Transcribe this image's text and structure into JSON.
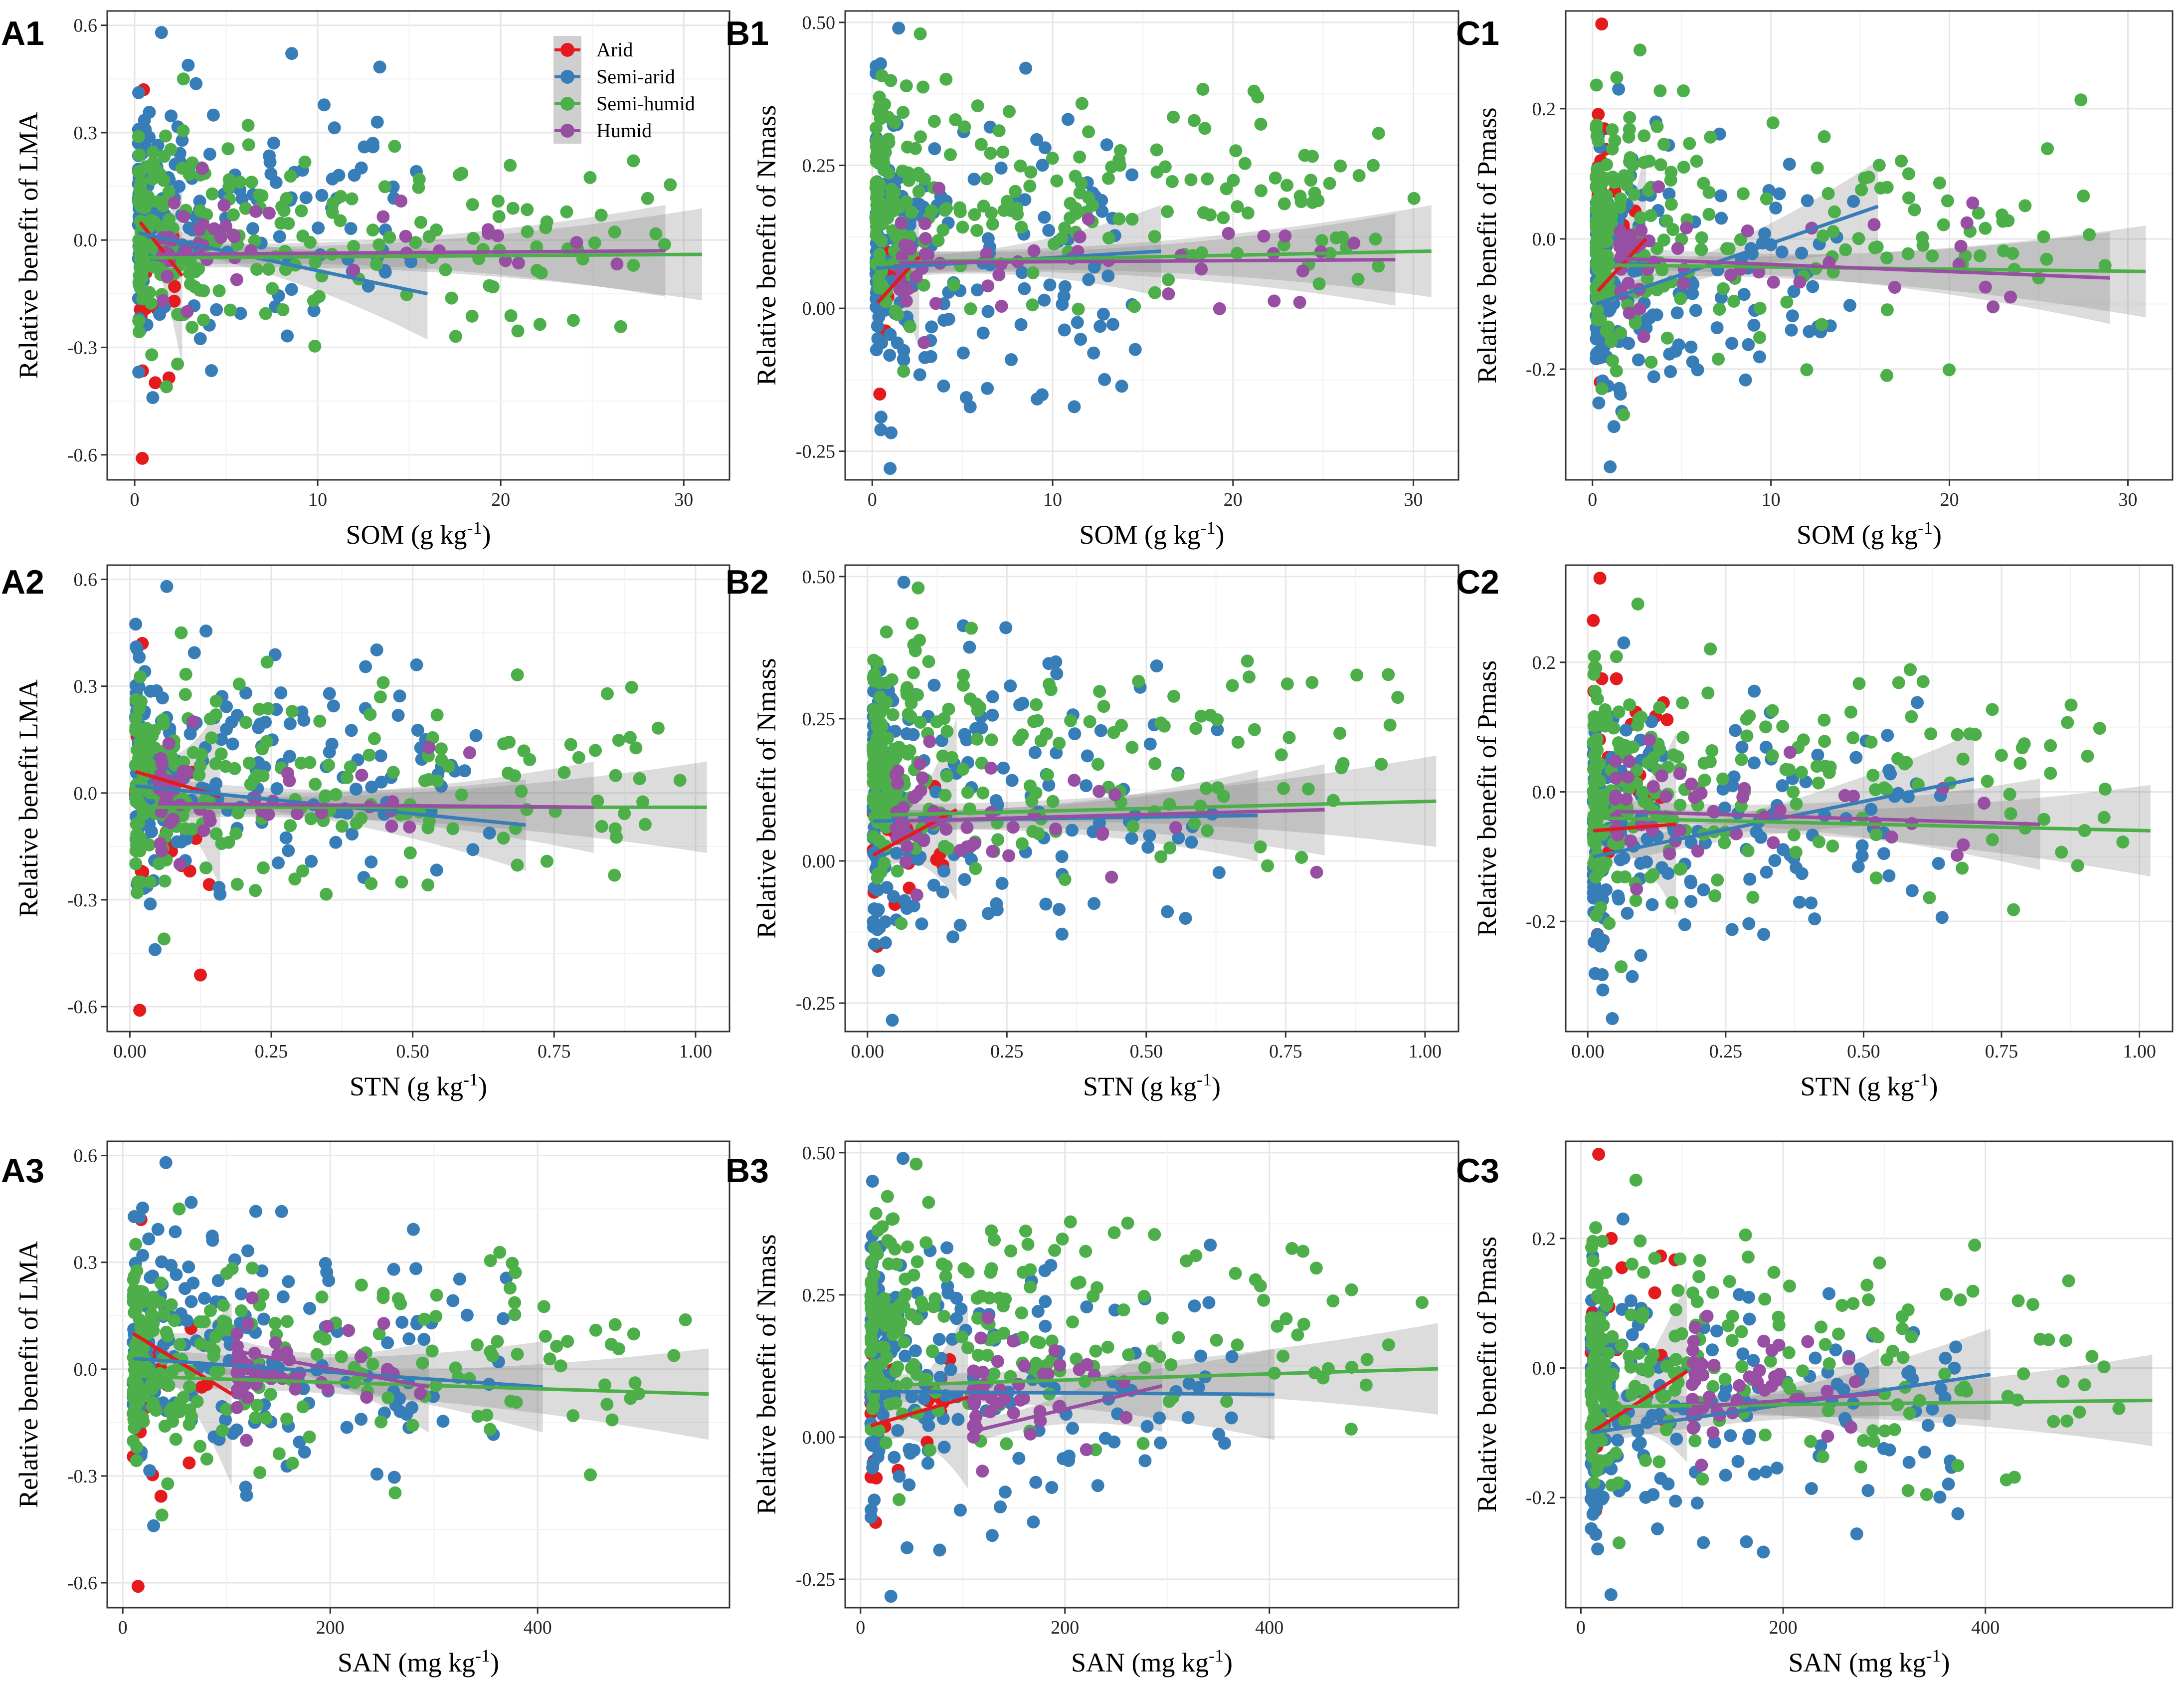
{
  "colors": {
    "Arid": "#e41a1c",
    "Semi-arid": "#377eb8",
    "Semi-humid": "#4daf4a",
    "Humid": "#984ea3"
  },
  "legend": [
    "Arid",
    "Semi-arid",
    "Semi-humid",
    "Humid"
  ],
  "chart_data": [
    {
      "id": "A1",
      "type": "scatter",
      "ylabel": "Relative benefit of LMA",
      "xlabel": "SOM (g kg",
      "xlabel_sup": "-1",
      "xlabel_close": ")",
      "xlim": [
        -1.5,
        32.5
      ],
      "ylim": [
        -0.67,
        0.64
      ],
      "xticks": [
        0,
        10,
        20,
        30
      ],
      "xtick_labels": [
        "0",
        "10",
        "20",
        "30"
      ],
      "yticks": [
        -0.6,
        -0.3,
        0,
        0.3,
        0.6
      ],
      "ytick_labels": [
        "-0.6",
        "-0.3",
        "0.0",
        "0.3",
        "0.6"
      ],
      "series": [
        {
          "name": "Arid",
          "xrange": [
            0.3,
            2.6
          ],
          "ymin": -0.61,
          "ymax": 0.42,
          "trend": [
            0.05,
            -0.1
          ]
        },
        {
          "name": "Semi-arid",
          "xrange": [
            0.2,
            16
          ],
          "ymin": -0.44,
          "ymax": 0.58,
          "trend": [
            0.02,
            -0.15
          ]
        },
        {
          "name": "Semi-humid",
          "xrange": [
            0.2,
            31
          ],
          "ymin": -0.41,
          "ymax": 0.45,
          "trend": [
            -0.05,
            -0.04
          ]
        },
        {
          "name": "Humid",
          "xrange": [
            1.5,
            29
          ],
          "ymin": -0.2,
          "ymax": 0.2,
          "trend": [
            -0.04,
            -0.03
          ]
        }
      ]
    },
    {
      "id": "B1",
      "type": "scatter",
      "ylabel": "Relative benefit of Nmass",
      "xlabel": "SOM (g kg",
      "xlabel_sup": "-1",
      "xlabel_close": ")",
      "xlim": [
        -1.5,
        32.5
      ],
      "ylim": [
        -0.3,
        0.52
      ],
      "xticks": [
        0,
        10,
        20,
        30
      ],
      "xtick_labels": [
        "0",
        "10",
        "20",
        "30"
      ],
      "yticks": [
        -0.25,
        0,
        0.25,
        0.5
      ],
      "ytick_labels": [
        "-0.25",
        "0.00",
        "0.25",
        "0.50"
      ],
      "series": [
        {
          "name": "Arid",
          "xrange": [
            0.3,
            2.6
          ],
          "ymin": -0.15,
          "ymax": 0.28,
          "trend": [
            0.01,
            0.09
          ]
        },
        {
          "name": "Semi-arid",
          "xrange": [
            0.2,
            16
          ],
          "ymin": -0.28,
          "ymax": 0.49,
          "trend": [
            0.07,
            0.1
          ]
        },
        {
          "name": "Semi-humid",
          "xrange": [
            0.2,
            31
          ],
          "ymin": -0.11,
          "ymax": 0.48,
          "trend": [
            0.08,
            0.1
          ]
        },
        {
          "name": "Humid",
          "xrange": [
            1.5,
            29
          ],
          "ymin": -0.06,
          "ymax": 0.21,
          "trend": [
            0.08,
            0.085
          ]
        }
      ]
    },
    {
      "id": "C1",
      "type": "scatter",
      "ylabel": "Relative benefit of Pmass",
      "xlabel": "SOM (g kg",
      "xlabel_sup": "-1",
      "xlabel_close": ")",
      "xlim": [
        -1.5,
        32.5
      ],
      "ylim": [
        -0.37,
        0.35
      ],
      "xticks": [
        0,
        10,
        20,
        30
      ],
      "xtick_labels": [
        "0",
        "10",
        "20",
        "30"
      ],
      "yticks": [
        -0.2,
        0,
        0.2
      ],
      "ytick_labels": [
        "-0.2",
        "0.0",
        "0.2"
      ],
      "series": [
        {
          "name": "Arid",
          "xrange": [
            0.3,
            3
          ],
          "ymin": -0.22,
          "ymax": 0.33,
          "trend": [
            -0.08,
            0.0
          ]
        },
        {
          "name": "Semi-arid",
          "xrange": [
            0.2,
            16
          ],
          "ymin": -0.35,
          "ymax": 0.23,
          "trend": [
            -0.1,
            0.05
          ]
        },
        {
          "name": "Semi-humid",
          "xrange": [
            0.2,
            31
          ],
          "ymin": -0.27,
          "ymax": 0.29,
          "trend": [
            -0.04,
            -0.05
          ]
        },
        {
          "name": "Humid",
          "xrange": [
            1.5,
            29
          ],
          "ymin": -0.15,
          "ymax": 0.08,
          "trend": [
            -0.03,
            -0.06
          ]
        }
      ]
    },
    {
      "id": "A2",
      "type": "scatter",
      "ylabel": "Relative benefit LMA",
      "xlabel": "STN (g kg",
      "xlabel_sup": "-1",
      "xlabel_close": ")",
      "xlim": [
        -0.04,
        1.06
      ],
      "ylim": [
        -0.67,
        0.64
      ],
      "xticks": [
        0,
        0.25,
        0.5,
        0.75,
        1.0
      ],
      "xtick_labels": [
        "0.00",
        "0.25",
        "0.50",
        "0.75",
        "1.00"
      ],
      "yticks": [
        -0.6,
        -0.3,
        0,
        0.3,
        0.6
      ],
      "ytick_labels": [
        "-0.6",
        "-0.3",
        "0.0",
        "0.3",
        "0.6"
      ],
      "series": [
        {
          "name": "Arid",
          "xrange": [
            0.01,
            0.16
          ],
          "ymin": -0.61,
          "ymax": 0.42,
          "trend": [
            0.06,
            -0.01
          ]
        },
        {
          "name": "Semi-arid",
          "xrange": [
            0.01,
            0.7
          ],
          "ymin": -0.44,
          "ymax": 0.58,
          "trend": [
            0.02,
            -0.09
          ]
        },
        {
          "name": "Semi-humid",
          "xrange": [
            0.01,
            1.02
          ],
          "ymin": -0.41,
          "ymax": 0.45,
          "trend": [
            -0.04,
            -0.04
          ]
        },
        {
          "name": "Humid",
          "xrange": [
            0.05,
            0.82
          ],
          "ymin": -0.2,
          "ymax": 0.2,
          "trend": [
            -0.03,
            -0.04
          ]
        }
      ]
    },
    {
      "id": "B2",
      "type": "scatter",
      "ylabel": "Relative benefit of Nmass",
      "xlabel": "STN (g kg",
      "xlabel_sup": "-1",
      "xlabel_close": ")",
      "xlim": [
        -0.04,
        1.06
      ],
      "ylim": [
        -0.3,
        0.52
      ],
      "xticks": [
        0,
        0.25,
        0.5,
        0.75,
        1.0
      ],
      "xtick_labels": [
        "0.00",
        "0.25",
        "0.50",
        "0.75",
        "1.00"
      ],
      "yticks": [
        -0.25,
        0,
        0.25,
        0.5
      ],
      "ytick_labels": [
        "-0.25",
        "0.00",
        "0.25",
        "0.50"
      ],
      "series": [
        {
          "name": "Arid",
          "xrange": [
            0.01,
            0.16
          ],
          "ymin": -0.15,
          "ymax": 0.28,
          "trend": [
            0.01,
            0.09
          ]
        },
        {
          "name": "Semi-arid",
          "xrange": [
            0.01,
            0.7
          ],
          "ymin": -0.28,
          "ymax": 0.49,
          "trend": [
            0.07,
            0.08
          ]
        },
        {
          "name": "Semi-humid",
          "xrange": [
            0.01,
            1.02
          ],
          "ymin": -0.11,
          "ymax": 0.48,
          "trend": [
            0.08,
            0.105
          ]
        },
        {
          "name": "Humid",
          "xrange": [
            0.05,
            0.82
          ],
          "ymin": -0.06,
          "ymax": 0.21,
          "trend": [
            0.07,
            0.09
          ]
        }
      ]
    },
    {
      "id": "C2",
      "type": "scatter",
      "ylabel": "Relative benefit of Pmass",
      "xlabel": "STN (g kg",
      "xlabel_sup": "-1",
      "xlabel_close": ")",
      "xlim": [
        -0.04,
        1.06
      ],
      "ylim": [
        -0.37,
        0.35
      ],
      "xticks": [
        0,
        0.25,
        0.5,
        0.75,
        1.0
      ],
      "xtick_labels": [
        "0.00",
        "0.25",
        "0.50",
        "0.75",
        "1.00"
      ],
      "yticks": [
        -0.2,
        0,
        0.2
      ],
      "ytick_labels": [
        "-0.2",
        "0.0",
        "0.2"
      ],
      "series": [
        {
          "name": "Arid",
          "xrange": [
            0.01,
            0.16
          ],
          "ymin": -0.22,
          "ymax": 0.33,
          "trend": [
            -0.06,
            -0.05
          ]
        },
        {
          "name": "Semi-arid",
          "xrange": [
            0.01,
            0.7
          ],
          "ymin": -0.35,
          "ymax": 0.23,
          "trend": [
            -0.1,
            0.02
          ]
        },
        {
          "name": "Semi-humid",
          "xrange": [
            0.01,
            1.02
          ],
          "ymin": -0.27,
          "ymax": 0.29,
          "trend": [
            -0.04,
            -0.06
          ]
        },
        {
          "name": "Humid",
          "xrange": [
            0.05,
            0.82
          ],
          "ymin": -0.15,
          "ymax": 0.08,
          "trend": [
            -0.03,
            -0.05
          ]
        }
      ]
    },
    {
      "id": "A3",
      "type": "scatter",
      "ylabel": "Relative benefit of LMA",
      "xlabel": "SAN (mg kg",
      "xlabel_sup": "-1",
      "xlabel_close": ")",
      "xlim": [
        -15,
        585
      ],
      "ylim": [
        -0.67,
        0.64
      ],
      "xticks": [
        0,
        200,
        400
      ],
      "xtick_labels": [
        "0",
        "200",
        "400"
      ],
      "yticks": [
        -0.6,
        -0.3,
        0,
        0.3,
        0.6
      ],
      "ytick_labels": [
        "-0.6",
        "-0.3",
        "0.0",
        "0.3",
        "0.6"
      ],
      "series": [
        {
          "name": "Arid",
          "xrange": [
            10,
            105
          ],
          "ymin": -0.61,
          "ymax": 0.42,
          "trend": [
            0.1,
            -0.07
          ]
        },
        {
          "name": "Semi-arid",
          "xrange": [
            10,
            405
          ],
          "ymin": -0.44,
          "ymax": 0.58,
          "trend": [
            0.03,
            -0.05
          ]
        },
        {
          "name": "Semi-humid",
          "xrange": [
            10,
            565
          ],
          "ymin": -0.41,
          "ymax": 0.45,
          "trend": [
            -0.02,
            -0.07
          ]
        },
        {
          "name": "Humid",
          "xrange": [
            110,
            295
          ],
          "ymin": -0.2,
          "ymax": 0.2,
          "trend": [
            0.05,
            -0.05
          ]
        }
      ]
    },
    {
      "id": "B3",
      "type": "scatter",
      "ylabel": "Relative benefit of Nmass",
      "xlabel": "SAN (mg kg",
      "xlabel_sup": "-1",
      "xlabel_close": ")",
      "xlim": [
        -15,
        585
      ],
      "ylim": [
        -0.3,
        0.52
      ],
      "xticks": [
        0,
        200,
        400
      ],
      "xtick_labels": [
        "0",
        "200",
        "400"
      ],
      "yticks": [
        -0.25,
        0,
        0.25,
        0.5
      ],
      "ytick_labels": [
        "-0.25",
        "0.00",
        "0.25",
        "0.50"
      ],
      "series": [
        {
          "name": "Arid",
          "xrange": [
            10,
            105
          ],
          "ymin": -0.15,
          "ymax": 0.28,
          "trend": [
            0.02,
            0.07
          ]
        },
        {
          "name": "Semi-arid",
          "xrange": [
            10,
            405
          ],
          "ymin": -0.28,
          "ymax": 0.49,
          "trend": [
            0.08,
            0.075
          ]
        },
        {
          "name": "Semi-humid",
          "xrange": [
            10,
            565
          ],
          "ymin": -0.11,
          "ymax": 0.48,
          "trend": [
            0.09,
            0.12
          ]
        },
        {
          "name": "Humid",
          "xrange": [
            110,
            295
          ],
          "ymin": -0.06,
          "ymax": 0.21,
          "trend": [
            0.01,
            0.09
          ]
        }
      ]
    },
    {
      "id": "C3",
      "type": "scatter",
      "ylabel": "Relative benefit of Pmass",
      "xlabel": "SAN (mg kg",
      "xlabel_sup": "-1",
      "xlabel_close": ")",
      "xlim": [
        -15,
        585
      ],
      "ylim": [
        -0.37,
        0.35
      ],
      "xticks": [
        0,
        200,
        400
      ],
      "xtick_labels": [
        "0",
        "200",
        "400"
      ],
      "yticks": [
        -0.2,
        0,
        0.2
      ],
      "ytick_labels": [
        "-0.2",
        "0.0",
        "0.2"
      ],
      "series": [
        {
          "name": "Arid",
          "xrange": [
            10,
            105
          ],
          "ymin": -0.22,
          "ymax": 0.33,
          "trend": [
            -0.1,
            -0.005
          ]
        },
        {
          "name": "Semi-arid",
          "xrange": [
            10,
            405
          ],
          "ymin": -0.35,
          "ymax": 0.23,
          "trend": [
            -0.1,
            -0.01
          ]
        },
        {
          "name": "Semi-humid",
          "xrange": [
            10,
            565
          ],
          "ymin": -0.27,
          "ymax": 0.29,
          "trend": [
            -0.06,
            -0.05
          ]
        },
        {
          "name": "Humid",
          "xrange": [
            110,
            295
          ],
          "ymin": -0.15,
          "ymax": 0.08,
          "trend": [
            -0.06,
            -0.04
          ]
        }
      ]
    }
  ]
}
